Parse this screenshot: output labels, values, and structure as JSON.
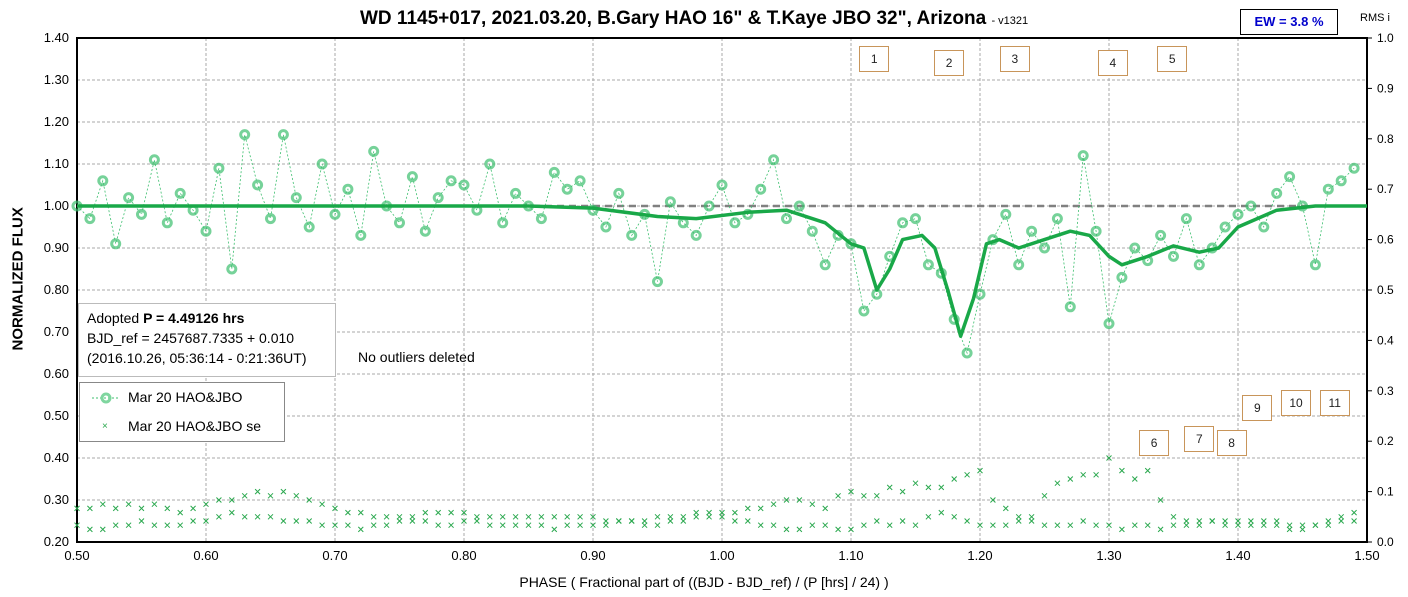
{
  "chart_data": {
    "type": "scatter",
    "title": "WD 1145+017, 2021.03.20, B.Gary HAO 16\" & T.Kaye JBO 32\", Arizona",
    "version": "- v1321",
    "ew_label": "EW = 3.8 %",
    "right_axis_label": "RMS i",
    "xlabel": "PHASE ( Fractional part of ((BJD - BJD_ref) / (P [hrs] / 24) )",
    "ylabel": "NORMALIZED FLUX",
    "xlim": [
      0.5,
      1.5
    ],
    "ylim": [
      0.2,
      1.4
    ],
    "y2lim": [
      0,
      1
    ],
    "xticks": [
      "0.50",
      "0.60",
      "0.70",
      "0.80",
      "0.90",
      "1.00",
      "1.10",
      "1.20",
      "1.30",
      "1.40",
      "1.50"
    ],
    "yticks": [
      "0.20",
      "0.30",
      "0.40",
      "0.50",
      "0.60",
      "0.70",
      "0.80",
      "0.90",
      "1.00",
      "1.10",
      "1.20",
      "1.30",
      "1.40"
    ],
    "y2ticks": [
      "0.0",
      "0.1",
      "0.2",
      "0.3",
      "0.4",
      "0.5",
      "0.6",
      "0.7",
      "0.8",
      "0.9",
      "1.0"
    ],
    "grid": true,
    "info_lines": [
      "Adopted ",
      "P = 4.49126 hrs",
      "BJD_ref = 2457687.7335 + 0.010",
      "(2016.10.26, 05:36:14 - 0:21:36UT)"
    ],
    "note": "No outliers deleted",
    "legend": [
      "Mar 20 HAO&JBO",
      "Mar 20 HAO&JBO se"
    ],
    "legend_placement": "left",
    "colors": {
      "flux": "#3cbf6e",
      "fit": "#19a848",
      "se": "#2aa84e",
      "ref": "#808080",
      "marker_border": "#c8955a"
    },
    "markers": [
      {
        "label": "1",
        "x": 1.118,
        "y": 1.35
      },
      {
        "label": "2",
        "x": 1.176,
        "y": 1.34
      },
      {
        "label": "3",
        "x": 1.227,
        "y": 1.35
      },
      {
        "label": "4",
        "x": 1.303,
        "y": 1.34
      },
      {
        "label": "5",
        "x": 1.349,
        "y": 1.35
      },
      {
        "label": "6",
        "x": 1.335,
        "y": 0.435
      },
      {
        "label": "7",
        "x": 1.37,
        "y": 0.445
      },
      {
        "label": "8",
        "x": 1.395,
        "y": 0.435
      },
      {
        "label": "9",
        "x": 1.415,
        "y": 0.52
      },
      {
        "label": "10",
        "x": 1.445,
        "y": 0.53
      },
      {
        "label": "11",
        "x": 1.475,
        "y": 0.53
      }
    ],
    "reference_level": 1.0,
    "phase_start": 0.5,
    "phase_step": 0.01,
    "flux": [
      1.0,
      0.97,
      1.06,
      0.91,
      1.02,
      0.98,
      1.11,
      0.96,
      1.03,
      0.99,
      0.94,
      1.09,
      0.85,
      1.17,
      1.05,
      0.97,
      1.17,
      1.02,
      0.95,
      1.1,
      0.98,
      1.04,
      0.93,
      1.13,
      1.0,
      0.96,
      1.07,
      0.94,
      1.02,
      1.06,
      1.05,
      0.99,
      1.1,
      0.96,
      1.03,
      1.0,
      0.97,
      1.08,
      1.04,
      1.06,
      0.99,
      0.95,
      1.03,
      0.93,
      0.98,
      0.82,
      1.01,
      0.96,
      0.93,
      1.0,
      1.05,
      0.96,
      0.98,
      1.04,
      1.11,
      0.97,
      1.0,
      0.94,
      0.86,
      0.93,
      0.91,
      0.75,
      0.79,
      0.88,
      0.96,
      0.97,
      0.86,
      0.84,
      0.73,
      0.65,
      0.79,
      0.92,
      0.98,
      0.86,
      0.94,
      0.9,
      0.97,
      0.76,
      1.12,
      0.94,
      0.72,
      0.83,
      0.9,
      0.87,
      0.93,
      0.88,
      0.97,
      0.86,
      0.9,
      0.95,
      0.98,
      1.0,
      0.95,
      1.03,
      1.07,
      1.0,
      0.86,
      1.04,
      1.06,
      1.09
    ],
    "fit": [
      [
        0.5,
        1.0
      ],
      [
        0.85,
        1.0
      ],
      [
        0.9,
        0.995
      ],
      [
        0.95,
        0.975
      ],
      [
        0.98,
        0.97
      ],
      [
        1.02,
        0.985
      ],
      [
        1.05,
        0.99
      ],
      [
        1.08,
        0.96
      ],
      [
        1.1,
        0.91
      ],
      [
        1.11,
        0.9
      ],
      [
        1.12,
        0.8
      ],
      [
        1.13,
        0.85
      ],
      [
        1.14,
        0.92
      ],
      [
        1.155,
        0.93
      ],
      [
        1.165,
        0.9
      ],
      [
        1.175,
        0.8
      ],
      [
        1.185,
        0.69
      ],
      [
        1.195,
        0.78
      ],
      [
        1.205,
        0.91
      ],
      [
        1.215,
        0.92
      ],
      [
        1.23,
        0.9
      ],
      [
        1.25,
        0.92
      ],
      [
        1.27,
        0.94
      ],
      [
        1.285,
        0.93
      ],
      [
        1.3,
        0.88
      ],
      [
        1.31,
        0.86
      ],
      [
        1.33,
        0.88
      ],
      [
        1.35,
        0.905
      ],
      [
        1.37,
        0.89
      ],
      [
        1.385,
        0.9
      ],
      [
        1.4,
        0.95
      ],
      [
        1.43,
        0.99
      ],
      [
        1.46,
        1.0
      ],
      [
        1.5,
        1.0
      ]
    ],
    "se_upper": [
      0.28,
      0.28,
      0.29,
      0.28,
      0.29,
      0.28,
      0.29,
      0.28,
      0.27,
      0.28,
      0.29,
      0.3,
      0.3,
      0.31,
      0.32,
      0.31,
      0.32,
      0.31,
      0.3,
      0.29,
      0.28,
      0.27,
      0.27,
      0.26,
      0.26,
      0.26,
      0.26,
      0.27,
      0.27,
      0.27,
      0.27,
      0.26,
      0.26,
      0.26,
      0.26,
      0.26,
      0.26,
      0.26,
      0.26,
      0.26,
      0.26,
      0.25,
      0.25,
      0.25,
      0.25,
      0.26,
      0.26,
      0.26,
      0.27,
      0.27,
      0.27,
      0.27,
      0.28,
      0.28,
      0.29,
      0.3,
      0.3,
      0.29,
      0.28,
      0.31,
      0.32,
      0.31,
      0.31,
      0.33,
      0.32,
      0.34,
      0.33,
      0.33,
      0.35,
      0.36,
      0.37,
      0.3,
      0.28,
      0.26,
      0.26,
      0.31,
      0.34,
      0.35,
      0.36,
      0.36,
      0.4,
      0.37,
      0.35,
      0.37,
      0.3,
      0.26,
      0.25,
      0.25,
      0.25,
      0.25,
      0.25,
      0.25,
      0.25,
      0.25,
      0.24,
      0.24,
      0.24,
      0.25,
      0.26,
      0.27
    ],
    "se_lower": [
      0.24,
      0.23,
      0.23,
      0.24,
      0.24,
      0.25,
      0.24,
      0.24,
      0.24,
      0.25,
      0.25,
      0.26,
      0.27,
      0.26,
      0.26,
      0.26,
      0.25,
      0.25,
      0.25,
      0.24,
      0.24,
      0.24,
      0.23,
      0.24,
      0.24,
      0.25,
      0.25,
      0.25,
      0.24,
      0.24,
      0.25,
      0.25,
      0.24,
      0.24,
      0.24,
      0.24,
      0.24,
      0.23,
      0.24,
      0.24,
      0.24,
      0.24,
      0.25,
      0.25,
      0.24,
      0.24,
      0.25,
      0.25,
      0.26,
      0.26,
      0.26,
      0.25,
      0.25,
      0.24,
      0.24,
      0.23,
      0.23,
      0.24,
      0.24,
      0.23,
      0.23,
      0.24,
      0.25,
      0.24,
      0.25,
      0.24,
      0.26,
      0.27,
      0.26,
      0.25,
      0.24,
      0.24,
      0.24,
      0.25,
      0.25,
      0.24,
      0.24,
      0.24,
      0.25,
      0.24,
      0.24,
      0.23,
      0.24,
      0.24,
      0.23,
      0.24,
      0.24,
      0.24,
      0.25,
      0.24,
      0.24,
      0.24,
      0.24,
      0.24,
      0.23,
      0.23,
      0.24,
      0.24,
      0.25,
      0.25
    ]
  }
}
